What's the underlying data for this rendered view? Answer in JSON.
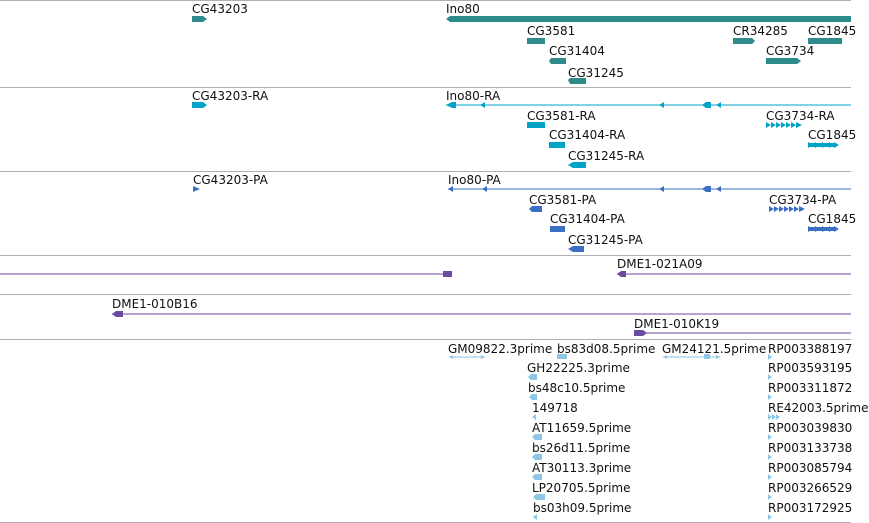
{
  "colors": {
    "gene": "#2e8b8b",
    "rna": "#00a3c8",
    "protein": "#3a6fc4",
    "clone": "#6b4aa0",
    "est": "#8ec6e6",
    "separator": "#b0b0b0"
  },
  "tracks": {
    "genes": {
      "labels": [
        "CG43203",
        "Ino80",
        "CG3581",
        "CR34285",
        "CG1845",
        "CG31404",
        "CG3734",
        "CG31245"
      ]
    },
    "rna": {
      "labels": [
        "CG43203-RA",
        "Ino80-RA",
        "CG3581-RA",
        "CG3734-RA",
        "CG31404-RA",
        "CG1845",
        "CG31245-RA"
      ]
    },
    "protein": {
      "labels": [
        "CG43203-PA",
        "Ino80-PA",
        "CG3581-PA",
        "CG3734-PA",
        "CG31404-PA",
        "CG1845",
        "CG31245-PA"
      ]
    },
    "clones_a": {
      "labels": [
        "DME1-021A09"
      ]
    },
    "clones_b": {
      "labels": [
        "DME1-010B16",
        "DME1-010K19"
      ]
    },
    "ests": {
      "labels": [
        "GM09822.3prime",
        "bs83d08.5prime",
        "GM24121.5prime",
        "RP003388197",
        "GH22225.3prime",
        "RP003593195",
        "bs48c10.5prime",
        "RP003311872",
        "149718",
        "RE42003.5prime",
        "AT11659.5prime",
        "RP003039830",
        "bs26d11.5prime",
        "RP003133738",
        "AT30113.3prime",
        "RP003085794",
        "LP20705.5prime",
        "RP003266529",
        "bs03h09.5prime",
        "RP003172925"
      ]
    }
  }
}
